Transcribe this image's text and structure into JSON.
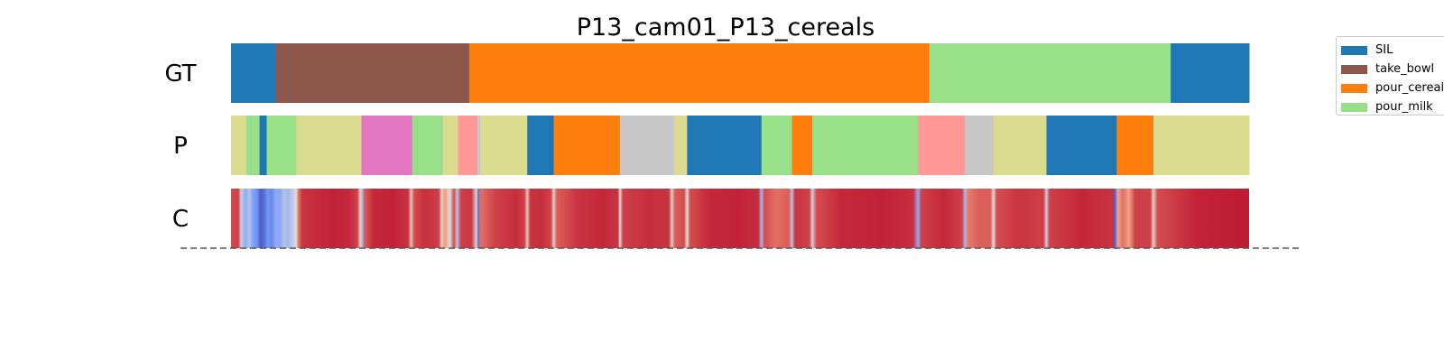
{
  "chart_data": {
    "type": "segment-timeline",
    "title": "P13_cam01_P13_cereals",
    "x_range": [
      0,
      1000
    ],
    "rows": [
      {
        "label": "GT",
        "segments": [
          {
            "start": 0,
            "end": 44,
            "action": "SIL"
          },
          {
            "start": 44,
            "end": 234,
            "action": "take_bowl"
          },
          {
            "start": 234,
            "end": 686,
            "action": "pour_cereals"
          },
          {
            "start": 686,
            "end": 923,
            "action": "pour_milk"
          },
          {
            "start": 923,
            "end": 1000,
            "action": "SIL"
          }
        ]
      },
      {
        "label": "P",
        "segments": [
          {
            "start": 0,
            "end": 15,
            "color": "#dbdb8d"
          },
          {
            "start": 15,
            "end": 28,
            "color": "#98df8a"
          },
          {
            "start": 28,
            "end": 35,
            "color": "#1f77b4"
          },
          {
            "start": 35,
            "end": 64,
            "color": "#98df8a"
          },
          {
            "start": 64,
            "end": 128,
            "color": "#dbdb8d"
          },
          {
            "start": 128,
            "end": 178,
            "color": "#e377c2"
          },
          {
            "start": 178,
            "end": 208,
            "color": "#98df8a"
          },
          {
            "start": 208,
            "end": 223,
            "color": "#dbdb8d"
          },
          {
            "start": 223,
            "end": 242,
            "color": "#ff9896"
          },
          {
            "start": 242,
            "end": 245,
            "color": "#c7c7c7"
          },
          {
            "start": 245,
            "end": 291,
            "color": "#dbdb8d"
          },
          {
            "start": 291,
            "end": 317,
            "color": "#1f77b4"
          },
          {
            "start": 317,
            "end": 382,
            "color": "#ff7f0e"
          },
          {
            "start": 382,
            "end": 435,
            "color": "#c7c7c7"
          },
          {
            "start": 435,
            "end": 448,
            "color": "#dbdb8d"
          },
          {
            "start": 448,
            "end": 521,
            "color": "#1f77b4"
          },
          {
            "start": 521,
            "end": 551,
            "color": "#98df8a"
          },
          {
            "start": 551,
            "end": 571,
            "color": "#ff7f0e"
          },
          {
            "start": 571,
            "end": 675,
            "color": "#98df8a"
          },
          {
            "start": 675,
            "end": 721,
            "color": "#ff9896"
          },
          {
            "start": 721,
            "end": 749,
            "color": "#c7c7c7"
          },
          {
            "start": 749,
            "end": 801,
            "color": "#dbdb8d"
          },
          {
            "start": 801,
            "end": 870,
            "color": "#1f77b4"
          },
          {
            "start": 870,
            "end": 906,
            "color": "#ff7f0e"
          },
          {
            "start": 906,
            "end": 1000,
            "color": "#dbdb8d"
          }
        ]
      },
      {
        "label": "C",
        "colormap": "coolwarm",
        "value_range": [
          0,
          1
        ],
        "values": [
          {
            "x": 0,
            "v": 0.88
          },
          {
            "x": 7,
            "v": 0.9
          },
          {
            "x": 10,
            "v": 0.45
          },
          {
            "x": 14,
            "v": 0.3
          },
          {
            "x": 18,
            "v": 0.4
          },
          {
            "x": 22,
            "v": 0.25
          },
          {
            "x": 26,
            "v": 0.2
          },
          {
            "x": 29,
            "v": 0.05
          },
          {
            "x": 32,
            "v": 0.1
          },
          {
            "x": 36,
            "v": 0.22
          },
          {
            "x": 40,
            "v": 0.18
          },
          {
            "x": 44,
            "v": 0.3
          },
          {
            "x": 48,
            "v": 0.28
          },
          {
            "x": 52,
            "v": 0.4
          },
          {
            "x": 56,
            "v": 0.35
          },
          {
            "x": 60,
            "v": 0.42
          },
          {
            "x": 64,
            "v": 0.5
          },
          {
            "x": 66,
            "v": 0.8
          },
          {
            "x": 70,
            "v": 0.92
          },
          {
            "x": 80,
            "v": 0.93
          },
          {
            "x": 100,
            "v": 0.95
          },
          {
            "x": 115,
            "v": 0.94
          },
          {
            "x": 124,
            "v": 0.9
          },
          {
            "x": 127,
            "v": 0.55
          },
          {
            "x": 129,
            "v": 0.35
          },
          {
            "x": 131,
            "v": 0.85
          },
          {
            "x": 140,
            "v": 0.94
          },
          {
            "x": 160,
            "v": 0.95
          },
          {
            "x": 174,
            "v": 0.92
          },
          {
            "x": 177,
            "v": 0.6
          },
          {
            "x": 180,
            "v": 0.88
          },
          {
            "x": 190,
            "v": 0.93
          },
          {
            "x": 204,
            "v": 0.9
          },
          {
            "x": 207,
            "v": 0.55
          },
          {
            "x": 210,
            "v": 0.75
          },
          {
            "x": 215,
            "v": 0.5
          },
          {
            "x": 219,
            "v": 0.88
          },
          {
            "x": 222,
            "v": 0.4
          },
          {
            "x": 226,
            "v": 0.9
          },
          {
            "x": 236,
            "v": 0.92
          },
          {
            "x": 241,
            "v": 0.55
          },
          {
            "x": 243,
            "v": 0.1
          },
          {
            "x": 245,
            "v": 0.82
          },
          {
            "x": 260,
            "v": 0.9
          },
          {
            "x": 280,
            "v": 0.93
          },
          {
            "x": 288,
            "v": 0.9
          },
          {
            "x": 291,
            "v": 0.6
          },
          {
            "x": 294,
            "v": 0.92
          },
          {
            "x": 305,
            "v": 0.93
          },
          {
            "x": 314,
            "v": 0.9
          },
          {
            "x": 317,
            "v": 0.55
          },
          {
            "x": 320,
            "v": 0.85
          },
          {
            "x": 340,
            "v": 0.92
          },
          {
            "x": 365,
            "v": 0.94
          },
          {
            "x": 380,
            "v": 0.92
          },
          {
            "x": 382,
            "v": 0.5
          },
          {
            "x": 385,
            "v": 0.9
          },
          {
            "x": 410,
            "v": 0.93
          },
          {
            "x": 430,
            "v": 0.92
          },
          {
            "x": 433,
            "v": 0.55
          },
          {
            "x": 436,
            "v": 0.85
          },
          {
            "x": 445,
            "v": 0.88
          },
          {
            "x": 448,
            "v": 0.5
          },
          {
            "x": 451,
            "v": 0.88
          },
          {
            "x": 470,
            "v": 0.94
          },
          {
            "x": 500,
            "v": 0.95
          },
          {
            "x": 518,
            "v": 0.93
          },
          {
            "x": 521,
            "v": 0.35
          },
          {
            "x": 524,
            "v": 0.88
          },
          {
            "x": 535,
            "v": 0.82
          },
          {
            "x": 548,
            "v": 0.85
          },
          {
            "x": 551,
            "v": 0.4
          },
          {
            "x": 554,
            "v": 0.92
          },
          {
            "x": 568,
            "v": 0.9
          },
          {
            "x": 571,
            "v": 0.45
          },
          {
            "x": 575,
            "v": 0.88
          },
          {
            "x": 600,
            "v": 0.94
          },
          {
            "x": 640,
            "v": 0.95
          },
          {
            "x": 670,
            "v": 0.93
          },
          {
            "x": 675,
            "v": 0.3
          },
          {
            "x": 678,
            "v": 0.9
          },
          {
            "x": 700,
            "v": 0.94
          },
          {
            "x": 718,
            "v": 0.9
          },
          {
            "x": 721,
            "v": 0.35
          },
          {
            "x": 724,
            "v": 0.8
          },
          {
            "x": 735,
            "v": 0.85
          },
          {
            "x": 746,
            "v": 0.85
          },
          {
            "x": 749,
            "v": 0.5
          },
          {
            "x": 752,
            "v": 0.88
          },
          {
            "x": 775,
            "v": 0.92
          },
          {
            "x": 798,
            "v": 0.9
          },
          {
            "x": 801,
            "v": 0.45
          },
          {
            "x": 804,
            "v": 0.9
          },
          {
            "x": 835,
            "v": 0.94
          },
          {
            "x": 866,
            "v": 0.92
          },
          {
            "x": 868,
            "v": 0.05
          },
          {
            "x": 871,
            "v": 0.7
          },
          {
            "x": 876,
            "v": 0.82
          },
          {
            "x": 882,
            "v": 0.72
          },
          {
            "x": 888,
            "v": 0.9
          },
          {
            "x": 903,
            "v": 0.9
          },
          {
            "x": 906,
            "v": 0.55
          },
          {
            "x": 910,
            "v": 0.88
          },
          {
            "x": 950,
            "v": 0.95
          },
          {
            "x": 1000,
            "v": 0.96
          }
        ]
      }
    ],
    "legend": {
      "placement": "upper-right",
      "entries": [
        {
          "label": "SIL",
          "color": "#1f77b4"
        },
        {
          "label": "take_bowl",
          "color": "#8c564b"
        },
        {
          "label": "pour_cereals",
          "color": "#ff7f0e"
        },
        {
          "label": "pour_milk",
          "color": "#98df8a"
        }
      ]
    },
    "baseline": "dashed"
  }
}
